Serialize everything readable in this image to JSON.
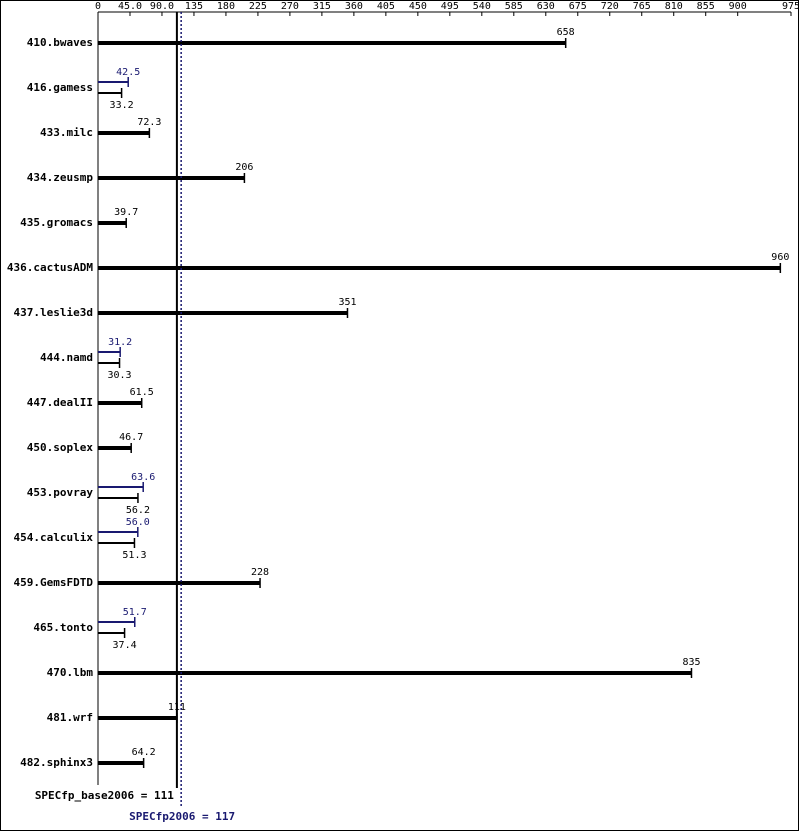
{
  "chart_data": {
    "type": "bar",
    "orientation": "horizontal",
    "categories": [
      "410.bwaves",
      "416.gamess",
      "433.milc",
      "434.zeusmp",
      "435.gromacs",
      "436.cactusADM",
      "437.leslie3d",
      "444.namd",
      "447.dealII",
      "450.soplex",
      "453.povray",
      "454.calculix",
      "459.GemsFDTD",
      "465.tonto",
      "470.lbm",
      "481.wrf",
      "482.sphinx3"
    ],
    "series": [
      {
        "name": "base",
        "color": "#000000",
        "values": [
          658,
          33.2,
          72.3,
          206,
          39.7,
          960,
          351,
          30.3,
          61.5,
          46.7,
          56.2,
          51.3,
          228,
          37.4,
          835,
          111,
          64.2
        ]
      },
      {
        "name": "peak",
        "color": "#191970",
        "values": [
          null,
          42.5,
          null,
          null,
          null,
          null,
          null,
          31.2,
          null,
          null,
          63.6,
          56,
          null,
          51.7,
          null,
          null,
          null
        ],
        "value_labels": [
          null,
          "42.5",
          null,
          null,
          null,
          null,
          null,
          "31.2",
          null,
          null,
          "63.6",
          "56.0",
          null,
          "51.7",
          null,
          null,
          null
        ]
      }
    ],
    "xlim": [
      0,
      975
    ],
    "xticks": [
      0,
      {
        "value": 45,
        "label": "45.0"
      },
      {
        "value": 90,
        "label": "90.0"
      },
      135,
      180,
      225,
      270,
      315,
      360,
      405,
      450,
      495,
      540,
      585,
      630,
      675,
      720,
      765,
      810,
      855,
      900,
      975
    ],
    "reference_lines": [
      {
        "label": "SPECfp_base2006 = 111",
        "value": 111,
        "color": "#000000",
        "style": "solid"
      },
      {
        "label": "SPECfp2006 = 117",
        "value": 117,
        "color": "#191970",
        "style": "dotted"
      }
    ]
  }
}
